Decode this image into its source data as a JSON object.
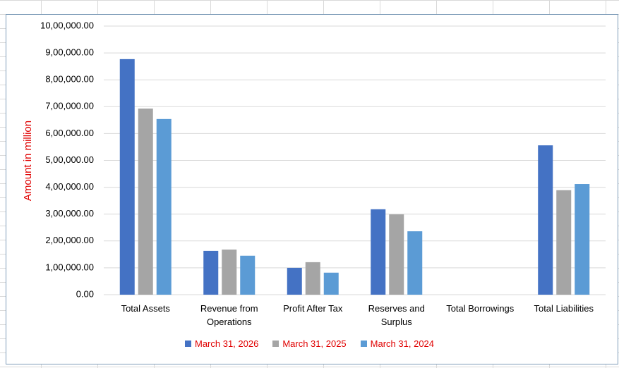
{
  "chart_data": {
    "type": "bar",
    "y_label": "Amount in million",
    "categories": [
      "Total Assets",
      "Revenue from Operations",
      "Profit After Tax",
      "Reserves and Surplus",
      "Total Borrowings",
      "Total Liabilities"
    ],
    "series": [
      {
        "name": "March 31, 2026",
        "color": "#4472c4",
        "values": [
          877000,
          163000,
          100000,
          318000,
          0,
          556000
        ]
      },
      {
        "name": "March 31, 2025",
        "color": "#a5a5a5",
        "values": [
          693000,
          168000,
          121000,
          299000,
          0,
          389000
        ]
      },
      {
        "name": "March 31, 2024",
        "color": "#5b9bd5",
        "values": [
          654000,
          145000,
          82000,
          236000,
          0,
          412000
        ]
      }
    ],
    "ylim": [
      0,
      1000000
    ],
    "yticks": [
      {
        "value": 0,
        "label": "0.00"
      },
      {
        "value": 100000,
        "label": "1,00,000.00"
      },
      {
        "value": 200000,
        "label": "2,00,000.00"
      },
      {
        "value": 300000,
        "label": "3,00,000.00"
      },
      {
        "value": 400000,
        "label": "4,00,000.00"
      },
      {
        "value": 500000,
        "label": "5,00,000.00"
      },
      {
        "value": 600000,
        "label": "6,00,000.00"
      },
      {
        "value": 700000,
        "label": "7,00,000.00"
      },
      {
        "value": 800000,
        "label": "8,00,000.00"
      },
      {
        "value": 900000,
        "label": "9,00,000.00"
      },
      {
        "value": 1000000,
        "label": "10,00,000.00"
      }
    ],
    "grid": true,
    "legend": "bottom"
  }
}
